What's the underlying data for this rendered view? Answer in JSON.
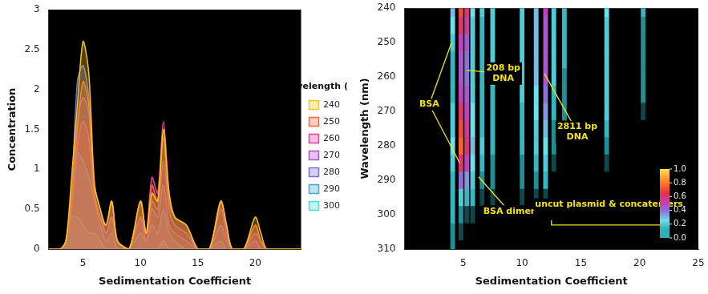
{
  "chart_data": [
    {
      "type": "line",
      "x_label": "Sedimentation Coefficient",
      "y_label": "Concentration",
      "legend_title": "Wavelength (nm)",
      "legend": "right",
      "grid": false,
      "xlim": [
        2,
        24
      ],
      "xticks": [
        5,
        10,
        15,
        20
      ],
      "ylim": [
        0,
        3
      ],
      "yticks": [
        0,
        0.5,
        1,
        1.5,
        2,
        2.5,
        3
      ],
      "x": [
        2,
        3,
        3.5,
        4,
        4.5,
        5,
        5.5,
        6,
        6.5,
        7,
        7.5,
        8,
        9,
        10,
        10.5,
        11,
        11.5,
        12,
        12.5,
        13,
        14,
        15,
        16,
        17,
        17.5,
        18,
        19,
        20,
        20.5,
        21,
        22,
        24
      ],
      "series": [
        {
          "name": "240",
          "color": "#f5c518",
          "values": [
            0,
            0,
            0.1,
            0.9,
            1.8,
            2.6,
            2.2,
            0.8,
            0.5,
            0.3,
            0.6,
            0.1,
            0,
            0.6,
            0.2,
            0.7,
            0.6,
            1.5,
            0.7,
            0.4,
            0.3,
            0,
            0,
            0.6,
            0.3,
            0,
            0,
            0.4,
            0.2,
            0,
            0,
            0
          ]
        },
        {
          "name": "250",
          "color": "#f06a3c",
          "values": [
            0,
            0,
            0.1,
            0.7,
            1.5,
            2.1,
            1.8,
            0.7,
            0.4,
            0.3,
            0.6,
            0.1,
            0,
            0.6,
            0.2,
            0.8,
            0.6,
            1.4,
            0.6,
            0.4,
            0.3,
            0,
            0,
            0.6,
            0.3,
            0,
            0,
            0.3,
            0.1,
            0,
            0,
            0
          ]
        },
        {
          "name": "260",
          "color": "#e0409a",
          "values": [
            0,
            0,
            0.1,
            0.5,
            1.3,
            1.6,
            1.4,
            0.6,
            0.4,
            0.3,
            0.6,
            0.1,
            0,
            0.6,
            0.2,
            0.9,
            0.7,
            1.6,
            0.7,
            0.4,
            0.3,
            0,
            0,
            0.6,
            0.3,
            0,
            0,
            0.3,
            0.1,
            0,
            0,
            0
          ]
        },
        {
          "name": "270",
          "color": "#b44fd0",
          "values": [
            0,
            0,
            0.1,
            0.6,
            1.6,
            1.9,
            1.7,
            0.7,
            0.4,
            0.2,
            0.4,
            0.1,
            0,
            0.4,
            0.1,
            0.6,
            0.5,
            1.1,
            0.5,
            0.3,
            0.2,
            0,
            0,
            0.5,
            0.2,
            0,
            0,
            0.2,
            0.1,
            0,
            0,
            0
          ]
        },
        {
          "name": "280",
          "color": "#7b6fe0",
          "values": [
            0,
            0,
            0.1,
            0.7,
            2.1,
            2.3,
            1.9,
            0.8,
            0.5,
            0.2,
            0.4,
            0.1,
            0,
            0.4,
            0.1,
            0.5,
            0.4,
            0.8,
            0.3,
            0.2,
            0.1,
            0,
            0,
            0.3,
            0.1,
            0,
            0,
            0.1,
            0,
            0,
            0,
            0
          ]
        },
        {
          "name": "290",
          "color": "#3fa8d8",
          "values": [
            0,
            0,
            0.1,
            0.5,
            1.2,
            1.1,
            0.9,
            0.6,
            0.3,
            0.1,
            0.2,
            0,
            0,
            0.2,
            0.1,
            0.3,
            0.2,
            0.5,
            0.2,
            0.1,
            0,
            0,
            0,
            0.1,
            0,
            0,
            0,
            0,
            0,
            0,
            0,
            0
          ]
        },
        {
          "name": "300",
          "color": "#3fe0d0",
          "values": [
            0,
            0,
            0.1,
            0.4,
            0.4,
            0.3,
            0.2,
            0.2,
            0.1,
            0,
            0,
            0,
            0,
            0,
            0,
            0,
            0,
            0.1,
            0,
            0,
            0,
            0,
            0,
            0,
            0,
            0,
            0,
            0,
            0,
            0,
            0,
            0
          ]
        }
      ]
    },
    {
      "type": "heatmap",
      "x_label": "Sedimentation Coefficient",
      "y_label": "Wavelength (nm)",
      "grid": false,
      "xlim": [
        0,
        25
      ],
      "xticks": [
        5,
        10,
        15,
        20,
        25
      ],
      "ylim": [
        310,
        240
      ],
      "yticks": [
        240,
        250,
        260,
        270,
        280,
        290,
        300,
        310
      ],
      "x": [
        4.1,
        4.8,
        5.3,
        5.8,
        6.6,
        7.5,
        10.0,
        11.2,
        12.0,
        12.7,
        13.6,
        17.2,
        20.3
      ],
      "y": [
        240,
        245,
        250,
        255,
        260,
        265,
        270,
        275,
        280,
        285,
        290,
        295,
        300,
        305,
        310
      ],
      "cells": [
        [
          0.3,
          0.25,
          0.2,
          0.15,
          0.15,
          0.15,
          0.2,
          0.2,
          0.25,
          0.2,
          0.15,
          0.15,
          0.15,
          0.1,
          0.1
        ],
        [
          0.7,
          0.6,
          0.5,
          0.45,
          0.45,
          0.5,
          0.6,
          0.7,
          0.75,
          0.6,
          0.4,
          0.2,
          0.1,
          0.05,
          0
        ],
        [
          0.6,
          0.55,
          0.45,
          0.4,
          0.4,
          0.45,
          0.5,
          0.55,
          0.6,
          0.5,
          0.35,
          0.15,
          0.05,
          0,
          0
        ],
        [
          0.25,
          0.2,
          0.2,
          0.2,
          0.2,
          0.2,
          0.25,
          0.25,
          0.3,
          0.25,
          0.2,
          0.15,
          0.05,
          0,
          0
        ],
        [
          0.2,
          0.15,
          0.15,
          0.15,
          0.15,
          0.15,
          0.15,
          0.15,
          0.2,
          0.15,
          0.1,
          0.05,
          0,
          0,
          0
        ],
        [
          0.2,
          0.2,
          0.2,
          0.2,
          0.2,
          0.15,
          0.15,
          0.15,
          0.15,
          0.1,
          0.1,
          0.05,
          0,
          0,
          0
        ],
        [
          0.2,
          0.2,
          0.2,
          0.2,
          0.2,
          0.2,
          0.15,
          0.15,
          0.15,
          0.1,
          0.1,
          0.05,
          0,
          0,
          0
        ],
        [
          0.3,
          0.3,
          0.3,
          0.3,
          0.3,
          0.25,
          0.25,
          0.2,
          0.2,
          0.15,
          0.1,
          0.05,
          0,
          0,
          0
        ],
        [
          0.5,
          0.45,
          0.45,
          0.45,
          0.45,
          0.4,
          0.35,
          0.3,
          0.25,
          0.2,
          0.15,
          0.05,
          0,
          0,
          0
        ],
        [
          0.2,
          0.2,
          0.2,
          0.2,
          0.2,
          0.15,
          0.15,
          0.1,
          0.1,
          0.05,
          0,
          0,
          0,
          0,
          0
        ],
        [
          0.15,
          0.15,
          0.15,
          0.15,
          0.1,
          0.1,
          0.1,
          0.05,
          0,
          0,
          0,
          0,
          0,
          0,
          0
        ],
        [
          0.25,
          0.2,
          0.2,
          0.2,
          0.2,
          0.2,
          0.2,
          0.15,
          0.1,
          0.05,
          0,
          0,
          0,
          0,
          0
        ],
        [
          0.15,
          0.1,
          0.1,
          0.1,
          0.1,
          0.1,
          0.05,
          0,
          0,
          0,
          0,
          0,
          0,
          0,
          0
        ]
      ],
      "colorbar": {
        "range": [
          0,
          1
        ],
        "ticks": [
          {
            "value": 0,
            "label": "0.0"
          },
          0.2,
          0.4,
          0.6,
          0.8,
          {
            "value": 1,
            "label": "1.0"
          }
        ]
      },
      "annotations": [
        {
          "text": "BSA",
          "x": 2.1,
          "y": 268,
          "targets": [
            [
              4.0,
              250
            ],
            [
              4.7,
              285
            ]
          ]
        },
        {
          "text": [
            "208 bp",
            "DNA"
          ],
          "x": 8.4,
          "y": 259,
          "targets": [
            [
              5.3,
              258
            ]
          ]
        },
        {
          "text": [
            "2811 bp",
            "DNA"
          ],
          "x": 14.7,
          "y": 276,
          "targets": [
            [
              11.9,
              259
            ]
          ]
        },
        {
          "text": "BSA dimer",
          "x": 8.9,
          "y": 299,
          "targets": [
            [
              6.3,
              289
            ]
          ]
        },
        {
          "text": "uncut plasmid & concatemers",
          "x": 17.4,
          "y": 297,
          "bracket": {
            "from": 12.5,
            "to": 22,
            "y": 303
          }
        }
      ]
    }
  ]
}
